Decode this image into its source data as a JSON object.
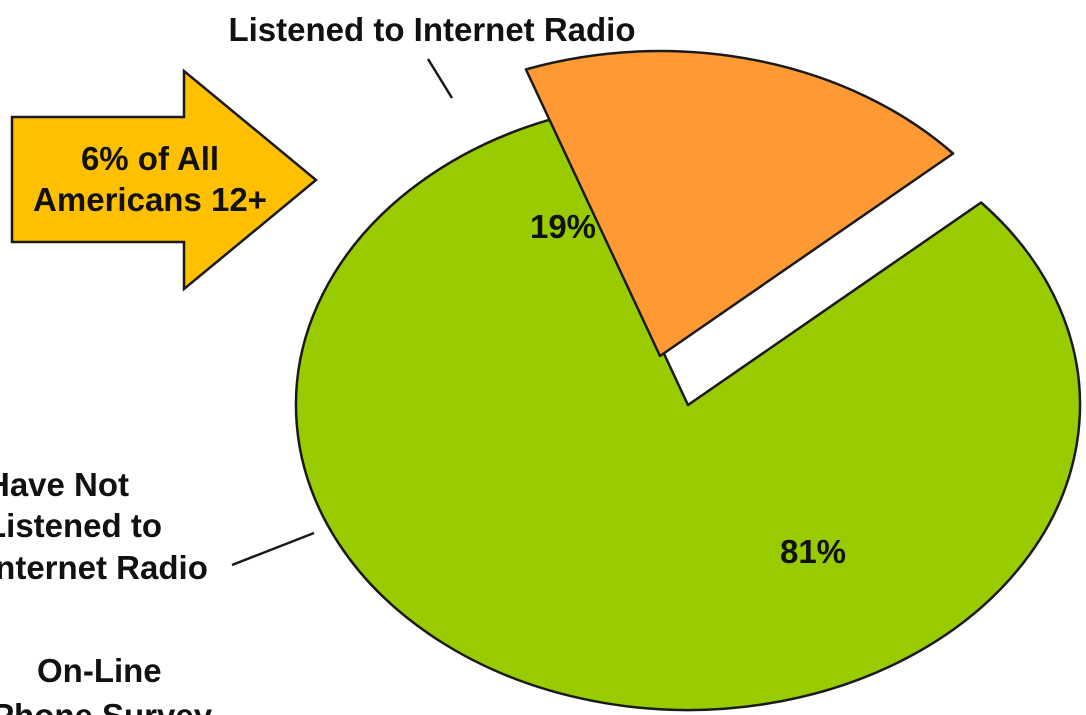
{
  "chart_data": {
    "type": "pie",
    "title": "",
    "slices": [
      {
        "label": "Listened to Internet Radio",
        "value": 19,
        "value_label": "19%",
        "color": "#FF9933",
        "exploded": true
      },
      {
        "label_lines": [
          "Have Not",
          "Listened to",
          "Internet Radio"
        ],
        "value": 81,
        "value_label": "81%",
        "color": "#99CC00",
        "exploded": false
      }
    ],
    "callout": {
      "lines": [
        "6% of All",
        "Americans 12+"
      ],
      "color": "#FFC000"
    },
    "source_note_lines": [
      "On-Line",
      "Phone Survey"
    ]
  }
}
